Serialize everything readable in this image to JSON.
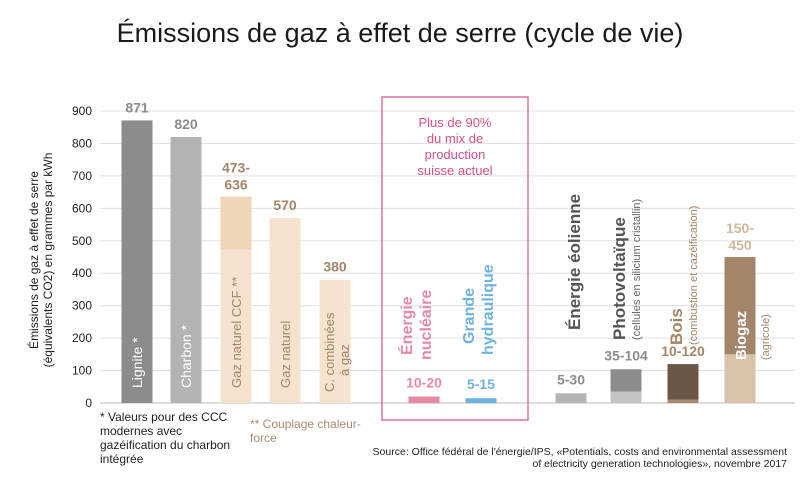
{
  "title": "Émissions de gaz à effet de serre (cycle de vie)",
  "ylabel_line1": "Émissions de gaz à effet de serre",
  "ylabel_line2": "(équivalents CO2) en grammes par kWh",
  "note_ccc": "* Valeurs pour des CCC modernes avec gazéification du charbon intégrée",
  "note_ccf": "** Couplage chaleur-force",
  "source": "Source: Office fédéral de l'énergie/IPS, «Potentials, costs and environmental assessment of electricity generation technologies», novembre 2017",
  "highlight_text": [
    "Plus de 90%",
    "du mix de",
    "production",
    "suisse actuel"
  ],
  "colors": {
    "lignite": "#8c8c8c",
    "charbon": "#b3b3b3",
    "gaz_ccf_light": "#f5e3cf",
    "gaz_ccf_dark": "#efd6b8",
    "gaz_naturel": "#f5e3cf",
    "combined": "#f5e3cf",
    "nuclear": "#e58aa3",
    "hydro": "#6fb3de",
    "wind": "#b5b5b5",
    "pv_dark": "#8c8c8c",
    "pv_light": "#c4c4c4",
    "wood_dark": "#6b5747",
    "wood_light": "#a38a70",
    "biogas_dark": "#a38569",
    "biogas_light": "#d9c3aa",
    "highlight": "#d4508a",
    "label_grey": "#8c8c8c",
    "label_brown": "#a38569"
  },
  "chart_data": {
    "type": "bar",
    "title": "Émissions de gaz à effet de serre (cycle de vie)",
    "ylabel": "Émissions de gaz à effet de serre (équivalents CO2) en grammes par kWh",
    "ylim": [
      0,
      900
    ],
    "yticks": [
      0,
      100,
      200,
      300,
      400,
      500,
      600,
      700,
      800,
      900
    ],
    "grid": true,
    "categories": [
      "Lignite *",
      "Charbon *",
      "Gaz naturel CCF **",
      "Gaz naturel",
      "C. combinées à gaz",
      "Énergie nucléaire",
      "Grande hydraulique",
      "Énergie éolienne",
      "Photovoltaïque",
      "Bois",
      "Biogaz"
    ],
    "category_sublabels": [
      "",
      "",
      "",
      "",
      "",
      "",
      "",
      "",
      "(cellules en silicium cristallin)",
      "(combustion et cazéification)",
      "(agricole)"
    ],
    "value_labels": [
      "871",
      "820",
      "473-636",
      "570",
      "380",
      "10-20",
      "5-15",
      "5-30",
      "35-104",
      "10-120",
      "150-450"
    ],
    "low": [
      871,
      820,
      473,
      570,
      380,
      10,
      5,
      5,
      35,
      10,
      150
    ],
    "high": [
      871,
      820,
      636,
      570,
      380,
      20,
      15,
      30,
      104,
      120,
      450
    ]
  }
}
